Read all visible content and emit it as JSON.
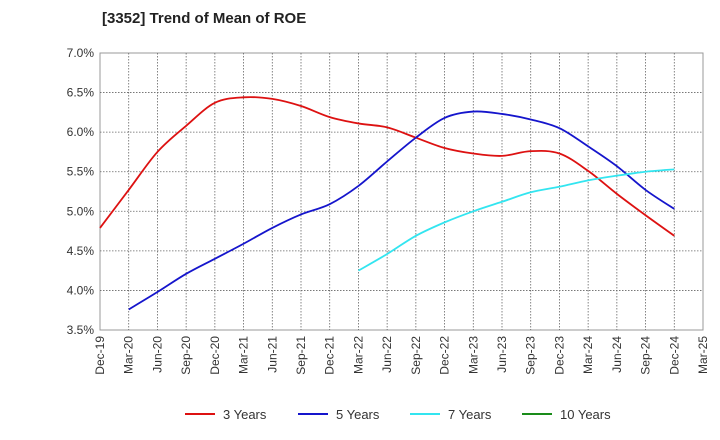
{
  "chart_data": {
    "type": "line",
    "title": "[3352]  Trend of Mean of ROE",
    "xlabel": "",
    "ylabel": "",
    "ylim": [
      3.5,
      7.0
    ],
    "yticks": [
      "3.5%",
      "4.0%",
      "4.5%",
      "5.0%",
      "5.5%",
      "6.0%",
      "6.5%",
      "7.0%"
    ],
    "ytick_values": [
      3.5,
      4.0,
      4.5,
      5.0,
      5.5,
      6.0,
      6.5,
      7.0
    ],
    "xticks": [
      "Dec-19",
      "Mar-20",
      "Jun-20",
      "Sep-20",
      "Dec-20",
      "Mar-21",
      "Jun-21",
      "Sep-21",
      "Dec-21",
      "Mar-22",
      "Jun-22",
      "Sep-22",
      "Dec-22",
      "Mar-23",
      "Jun-23",
      "Sep-23",
      "Dec-23",
      "Mar-24",
      "Jun-24",
      "Sep-24",
      "Dec-24",
      "Mar-25"
    ],
    "grid": true,
    "legend_position": "bottom",
    "series": [
      {
        "name": "3 Years",
        "color": "#dd1111",
        "x": [
          "Dec-19",
          "Mar-20",
          "Jun-20",
          "Sep-20",
          "Dec-20",
          "Mar-21",
          "Jun-21",
          "Sep-21",
          "Dec-21",
          "Mar-22",
          "Jun-22",
          "Sep-22",
          "Dec-22",
          "Mar-23",
          "Jun-23",
          "Sep-23",
          "Dec-23",
          "Mar-24",
          "Jun-24",
          "Sep-24",
          "Dec-24"
        ],
        "values": [
          4.79,
          5.27,
          5.75,
          6.08,
          6.37,
          6.44,
          6.42,
          6.33,
          6.19,
          6.11,
          6.06,
          5.93,
          5.8,
          5.73,
          5.7,
          5.76,
          5.73,
          5.51,
          5.22,
          4.95,
          4.69
        ]
      },
      {
        "name": "5 Years",
        "color": "#1515cc",
        "x": [
          "Mar-20",
          "Jun-20",
          "Sep-20",
          "Dec-20",
          "Mar-21",
          "Jun-21",
          "Sep-21",
          "Dec-21",
          "Mar-22",
          "Jun-22",
          "Sep-22",
          "Dec-22",
          "Mar-23",
          "Jun-23",
          "Sep-23",
          "Dec-23",
          "Mar-24",
          "Jun-24",
          "Sep-24",
          "Dec-24"
        ],
        "values": [
          3.76,
          3.98,
          4.21,
          4.4,
          4.59,
          4.79,
          4.96,
          5.09,
          5.32,
          5.63,
          5.93,
          6.18,
          6.26,
          6.23,
          6.16,
          6.05,
          5.82,
          5.57,
          5.27,
          5.03
        ]
      },
      {
        "name": "7 Years",
        "color": "#33e5f0",
        "x": [
          "Mar-22",
          "Jun-22",
          "Sep-22",
          "Dec-22",
          "Mar-23",
          "Jun-23",
          "Sep-23",
          "Dec-23",
          "Mar-24",
          "Jun-24",
          "Sep-24",
          "Dec-24"
        ],
        "values": [
          4.25,
          4.46,
          4.69,
          4.86,
          5.0,
          5.12,
          5.24,
          5.31,
          5.39,
          5.45,
          5.5,
          5.53
        ]
      },
      {
        "name": "10 Years",
        "color": "#1a8c1a",
        "x": [],
        "values": []
      }
    ]
  }
}
